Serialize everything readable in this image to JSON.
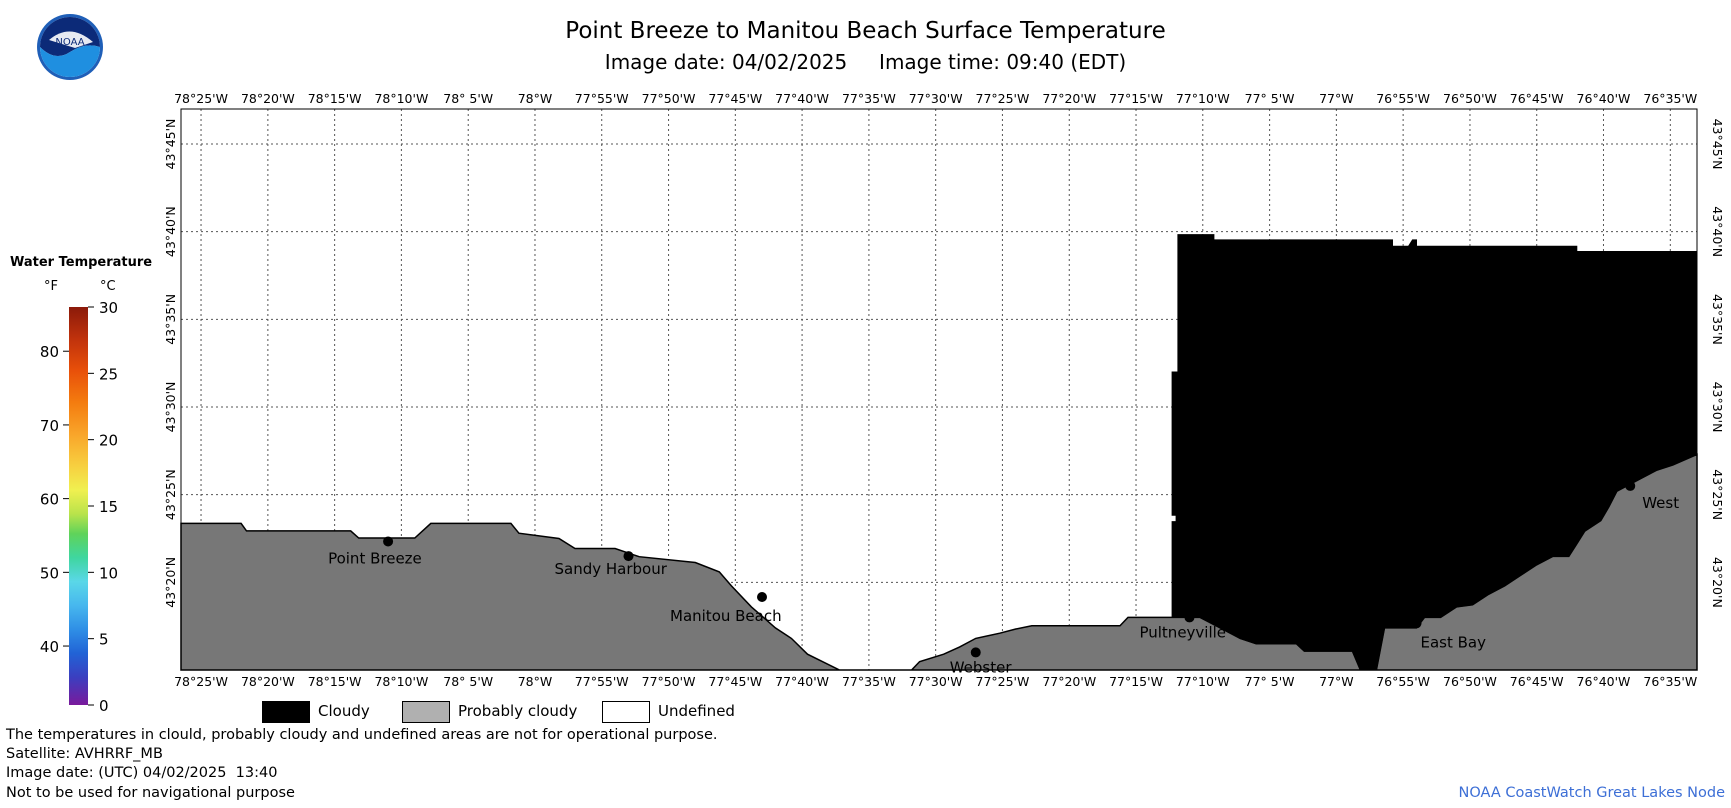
{
  "header": {
    "logo_text": "NOAA",
    "title": "Point Breeze to Manitou Beach Surface Temperature",
    "subtitle": "Image date: 04/02/2025     Image time: 09:40 (EDT)"
  },
  "colors": {
    "cloudy": "#000000",
    "probably_cloudy": "#777777",
    "undefined": "#ffffff",
    "grid": "#555555",
    "credit": "#3d6fd6"
  },
  "map": {
    "lon_range": [
      -78.4417,
      -76.55
    ],
    "lat_range": [
      43.25,
      43.7833
    ],
    "lon_ticks": [
      {
        "lon": -78.4167,
        "label": "78°25'W"
      },
      {
        "lon": -78.3333,
        "label": "78°20'W"
      },
      {
        "lon": -78.25,
        "label": "78°15'W"
      },
      {
        "lon": -78.1667,
        "label": "78°10'W"
      },
      {
        "lon": -78.0833,
        "label": "78° 5'W"
      },
      {
        "lon": -78.0,
        "label": "78°W"
      },
      {
        "lon": -77.9167,
        "label": "77°55'W"
      },
      {
        "lon": -77.8333,
        "label": "77°50'W"
      },
      {
        "lon": -77.75,
        "label": "77°45'W"
      },
      {
        "lon": -77.6667,
        "label": "77°40'W"
      },
      {
        "lon": -77.5833,
        "label": "77°35'W"
      },
      {
        "lon": -77.5,
        "label": "77°30'W"
      },
      {
        "lon": -77.4167,
        "label": "77°25'W"
      },
      {
        "lon": -77.3333,
        "label": "77°20'W"
      },
      {
        "lon": -77.25,
        "label": "77°15'W"
      },
      {
        "lon": -77.1667,
        "label": "77°10'W"
      },
      {
        "lon": -77.0833,
        "label": "77° 5'W"
      },
      {
        "lon": -77.0,
        "label": "77°W"
      },
      {
        "lon": -76.9167,
        "label": "76°55'W"
      },
      {
        "lon": -76.8333,
        "label": "76°50'W"
      },
      {
        "lon": -76.75,
        "label": "76°45'W"
      },
      {
        "lon": -76.6667,
        "label": "76°40'W"
      },
      {
        "lon": -76.5833,
        "label": "76°35'W"
      }
    ],
    "lat_ticks": [
      {
        "lat": 43.3333,
        "label": "43°20'N"
      },
      {
        "lat": 43.4167,
        "label": "43°25'N"
      },
      {
        "lat": 43.5,
        "label": "43°30'N"
      },
      {
        "lat": 43.5833,
        "label": "43°35'N"
      },
      {
        "lat": 43.6667,
        "label": "43°40'N"
      },
      {
        "lat": 43.75,
        "label": "43°45'N"
      }
    ],
    "land_outline": [
      [
        -78.4417,
        43.3894
      ],
      [
        -78.3667,
        43.3894
      ],
      [
        -78.36,
        43.3822
      ],
      [
        -78.23,
        43.3822
      ],
      [
        -78.22,
        43.3755
      ],
      [
        -78.15,
        43.3755
      ],
      [
        -78.13,
        43.3894
      ],
      [
        -78.03,
        43.3894
      ],
      [
        -78.02,
        43.38
      ],
      [
        -77.97,
        43.375
      ],
      [
        -77.95,
        43.3655
      ],
      [
        -77.9,
        43.3655
      ],
      [
        -77.87,
        43.3577
      ],
      [
        -77.8,
        43.3522
      ],
      [
        -77.77,
        43.3433
      ],
      [
        -77.755,
        43.33
      ],
      [
        -77.73,
        43.31
      ],
      [
        -77.7,
        43.29
      ],
      [
        -77.68,
        43.28
      ],
      [
        -77.66,
        43.265
      ],
      [
        -77.62,
        43.25
      ],
      [
        -77.53,
        43.25
      ],
      [
        -77.52,
        43.258
      ],
      [
        -77.49,
        43.265
      ],
      [
        -77.47,
        43.272
      ],
      [
        -77.45,
        43.28
      ],
      [
        -77.42,
        43.285
      ],
      [
        -77.4,
        43.289
      ],
      [
        -77.38,
        43.292
      ],
      [
        -77.27,
        43.292
      ],
      [
        -77.26,
        43.3
      ],
      [
        -77.17,
        43.3
      ],
      [
        -77.15,
        43.292
      ],
      [
        -77.12,
        43.28
      ],
      [
        -77.1,
        43.275
      ],
      [
        -77.05,
        43.275
      ],
      [
        -77.04,
        43.268
      ],
      [
        -76.98,
        43.268
      ],
      [
        -76.97,
        43.25
      ],
      [
        -76.95,
        43.25
      ],
      [
        -76.94,
        43.29
      ],
      [
        -76.9,
        43.29
      ],
      [
        -76.89,
        43.3
      ],
      [
        -76.87,
        43.3
      ],
      [
        -76.85,
        43.31
      ],
      [
        -76.83,
        43.312
      ],
      [
        -76.81,
        43.322
      ],
      [
        -76.79,
        43.33
      ],
      [
        -76.77,
        43.34
      ],
      [
        -76.75,
        43.35
      ],
      [
        -76.73,
        43.358
      ],
      [
        -76.71,
        43.358
      ],
      [
        -76.7,
        43.37
      ],
      [
        -76.69,
        43.382
      ],
      [
        -76.67,
        43.392
      ],
      [
        -76.66,
        43.405
      ],
      [
        -76.65,
        43.42
      ],
      [
        -76.62,
        43.432
      ],
      [
        -76.6,
        43.44
      ],
      [
        -76.58,
        43.445
      ],
      [
        -76.55,
        43.455
      ],
      [
        -76.55,
        43.25
      ],
      [
        -78.4417,
        43.25
      ]
    ],
    "cloud_outline": [
      [
        -77.1978,
        43.5333
      ],
      [
        -77.1978,
        43.6639
      ],
      [
        -77.1528,
        43.6639
      ],
      [
        -77.1528,
        43.6589
      ],
      [
        -77.07,
        43.6589
      ],
      [
        -76.98,
        43.6589
      ],
      [
        -76.93,
        43.6589
      ],
      [
        -76.93,
        43.6528
      ],
      [
        -76.91,
        43.6528
      ],
      [
        -76.905,
        43.6589
      ],
      [
        -76.9,
        43.6589
      ],
      [
        -76.9,
        43.6528
      ],
      [
        -76.78,
        43.6528
      ],
      [
        -76.7,
        43.6528
      ],
      [
        -76.7,
        43.6478
      ],
      [
        -76.6,
        43.6478
      ],
      [
        -76.55,
        43.6478
      ],
      [
        -76.55,
        43.455
      ],
      [
        -76.58,
        43.445
      ],
      [
        -76.6,
        43.44
      ],
      [
        -76.62,
        43.432
      ],
      [
        -76.65,
        43.42
      ],
      [
        -76.66,
        43.405
      ],
      [
        -76.67,
        43.392
      ],
      [
        -76.69,
        43.382
      ],
      [
        -76.7,
        43.37
      ],
      [
        -76.71,
        43.358
      ],
      [
        -76.73,
        43.358
      ],
      [
        -76.75,
        43.35
      ],
      [
        -76.77,
        43.34
      ],
      [
        -76.79,
        43.33
      ],
      [
        -76.81,
        43.322
      ],
      [
        -76.83,
        43.312
      ],
      [
        -76.85,
        43.31
      ],
      [
        -76.87,
        43.3
      ],
      [
        -76.89,
        43.3
      ],
      [
        -76.9,
        43.29
      ],
      [
        -76.94,
        43.29
      ],
      [
        -76.95,
        43.25
      ],
      [
        -76.97,
        43.25
      ],
      [
        -76.98,
        43.268
      ],
      [
        -77.04,
        43.268
      ],
      [
        -77.05,
        43.275
      ],
      [
        -77.1,
        43.275
      ],
      [
        -77.12,
        43.28
      ],
      [
        -77.15,
        43.292
      ],
      [
        -77.17,
        43.3
      ],
      [
        -77.205,
        43.3
      ],
      [
        -77.205,
        43.3911
      ],
      [
        -77.2,
        43.3911
      ],
      [
        -77.2,
        43.3972
      ],
      [
        -77.205,
        43.3972
      ],
      [
        -77.205,
        43.5333
      ],
      [
        -77.1978,
        43.5333
      ]
    ],
    "cities": [
      {
        "name": "Point Breeze",
        "lon": -78.1833,
        "lat": 43.3722,
        "label_dx": -60,
        "label_dy": 22
      },
      {
        "name": "Sandy Harbour",
        "lon": -77.8833,
        "lat": 43.3583,
        "label_dx": -74,
        "label_dy": 18
      },
      {
        "name": "Manitou Beach",
        "lon": -77.7167,
        "lat": 43.3194,
        "label_dx": -92,
        "label_dy": 24
      },
      {
        "name": "Webster",
        "lon": -77.45,
        "lat": 43.2667,
        "label_dx": -26,
        "label_dy": 20
      },
      {
        "name": "Pultneyville",
        "lon": -77.1833,
        "lat": 43.3,
        "label_dx": -50,
        "label_dy": 20
      },
      {
        "name": "East Bay",
        "lon": -76.9,
        "lat": 43.2944,
        "label_dx": 4,
        "label_dy": 24
      },
      {
        "name": "West",
        "lon": -76.6333,
        "lat": 43.425,
        "label_dx": 12,
        "label_dy": 22
      }
    ]
  },
  "scale": {
    "title": "Water Temperature",
    "unit_f": "°F",
    "unit_c": "°C",
    "f_range": [
      32,
      86
    ],
    "c_range": [
      0,
      30
    ],
    "f_ticks": [
      {
        "value": 40,
        "label": "40"
      },
      {
        "value": 50,
        "label": "50"
      },
      {
        "value": 60,
        "label": "60"
      },
      {
        "value": 70,
        "label": "70"
      },
      {
        "value": 80,
        "label": "80"
      }
    ],
    "c_ticks": [
      {
        "value": 0,
        "label": "0"
      },
      {
        "value": 5,
        "label": "5"
      },
      {
        "value": 10,
        "label": "10"
      },
      {
        "value": 15,
        "label": "15"
      },
      {
        "value": 20,
        "label": "20"
      },
      {
        "value": 25,
        "label": "25"
      },
      {
        "value": 30,
        "label": "30"
      }
    ]
  },
  "legend": {
    "cloudy": "Cloudy",
    "probably_cloudy": "Probably cloudy",
    "undefined": "Undefined"
  },
  "footer": {
    "line1": "The temperatures in clould, probably cloudy and undefined areas are not for operational purpose.",
    "line2": "Satellite: AVHRRF_MB",
    "line3": "Image date: (UTC) 04/02/2025  13:40",
    "line4": "Not to be used for navigational purpose",
    "credit": "NOAA CoastWatch Great Lakes Node"
  }
}
